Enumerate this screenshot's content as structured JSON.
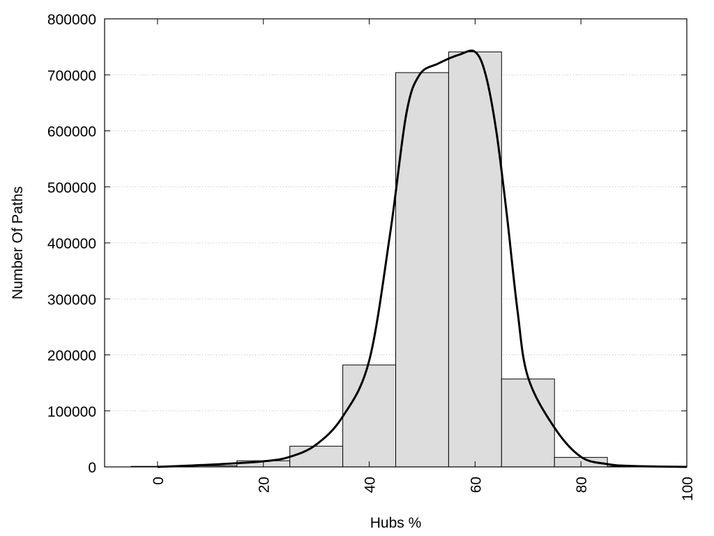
{
  "chart_data": {
    "type": "bar",
    "title": "",
    "xlabel": "Hubs %",
    "ylabel": "Number Of Paths",
    "xlim": [
      -10,
      100
    ],
    "ylim": [
      0,
      800000
    ],
    "x_ticks": [
      0,
      20,
      40,
      60,
      80,
      100
    ],
    "y_ticks": [
      0,
      100000,
      200000,
      300000,
      400000,
      500000,
      600000,
      700000,
      800000
    ],
    "grid": "horizontal dotted",
    "legend": "none",
    "bin_width": 10,
    "bins": [
      {
        "x": 0,
        "value": 1000
      },
      {
        "x": 10,
        "value": 2000
      },
      {
        "x": 20,
        "value": 11000
      },
      {
        "x": 30,
        "value": 37000
      },
      {
        "x": 40,
        "value": 182000
      },
      {
        "x": 50,
        "value": 704000
      },
      {
        "x": 60,
        "value": 741000
      },
      {
        "x": 70,
        "value": 157000
      },
      {
        "x": 80,
        "value": 17000
      },
      {
        "x": 90,
        "value": 1000
      }
    ],
    "curve": [
      {
        "x": 0,
        "y": 0
      },
      {
        "x": 10,
        "y": 4000
      },
      {
        "x": 20,
        "y": 10000
      },
      {
        "x": 25,
        "y": 18000
      },
      {
        "x": 30,
        "y": 40000
      },
      {
        "x": 35,
        "y": 90000
      },
      {
        "x": 40,
        "y": 190000
      },
      {
        "x": 44,
        "y": 420000
      },
      {
        "x": 47,
        "y": 630000
      },
      {
        "x": 49.5,
        "y": 700000
      },
      {
        "x": 53,
        "y": 720000
      },
      {
        "x": 57,
        "y": 736000
      },
      {
        "x": 60,
        "y": 741000
      },
      {
        "x": 62,
        "y": 700000
      },
      {
        "x": 64,
        "y": 600000
      },
      {
        "x": 66,
        "y": 450000
      },
      {
        "x": 68,
        "y": 280000
      },
      {
        "x": 70,
        "y": 160000
      },
      {
        "x": 75,
        "y": 70000
      },
      {
        "x": 80,
        "y": 18000
      },
      {
        "x": 85,
        "y": 5000
      },
      {
        "x": 90,
        "y": 1500
      },
      {
        "x": 100,
        "y": 0
      }
    ],
    "colors": {
      "bar_fill": "#dddddd",
      "bar_stroke": "#000000",
      "curve": "#000000",
      "grid": "#bbbbbb"
    }
  }
}
